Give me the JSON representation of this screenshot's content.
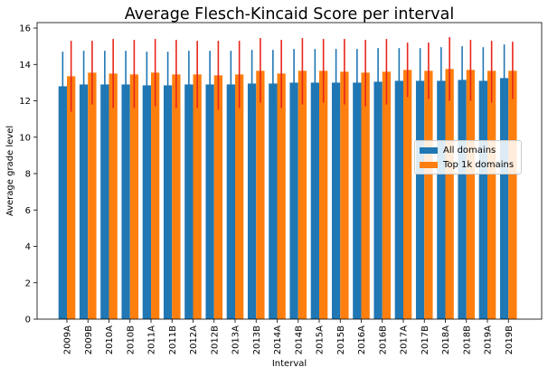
{
  "chart_data": {
    "type": "bar",
    "title": "Average Flesch-Kincaid Score per interval",
    "xlabel": "Interval",
    "ylabel": "Average grade level",
    "ylim": [
      0,
      16.3
    ],
    "yticks": [
      0,
      2,
      4,
      6,
      8,
      10,
      12,
      14,
      16
    ],
    "legend_position": "center-right",
    "grid": false,
    "categories": [
      "2009A",
      "2009B",
      "2010A",
      "2010B",
      "2011A",
      "2011B",
      "2012A",
      "2012B",
      "2013A",
      "2013B",
      "2014A",
      "2014B",
      "2015A",
      "2015B",
      "2016A",
      "2016B",
      "2017A",
      "2017B",
      "2018A",
      "2018B",
      "2019A",
      "2019B"
    ],
    "series": [
      {
        "name": "All domains",
        "color": "#1f77b4",
        "values": [
          12.8,
          12.9,
          12.9,
          12.9,
          12.85,
          12.85,
          12.9,
          12.9,
          12.9,
          12.95,
          12.95,
          13.0,
          13.0,
          13.0,
          13.0,
          13.05,
          13.1,
          13.1,
          13.1,
          13.15,
          13.1,
          13.25
        ],
        "error_low": [
          11.0,
          11.0,
          11.0,
          11.05,
          11.0,
          11.0,
          11.05,
          11.05,
          11.05,
          11.1,
          11.1,
          11.15,
          11.2,
          11.2,
          11.2,
          11.2,
          11.25,
          11.25,
          11.25,
          11.3,
          11.3,
          11.4
        ],
        "error_high": [
          14.7,
          14.75,
          14.75,
          14.75,
          14.7,
          14.7,
          14.75,
          14.75,
          14.75,
          14.8,
          14.8,
          14.85,
          14.85,
          14.85,
          14.85,
          14.9,
          14.9,
          14.9,
          14.95,
          15.0,
          14.95,
          15.1
        ]
      },
      {
        "name": "Top 1k domains",
        "color": "#ff7f0e",
        "error_color": "#e8251c",
        "values": [
          13.35,
          13.55,
          13.5,
          13.45,
          13.55,
          13.45,
          13.45,
          13.4,
          13.45,
          13.65,
          13.5,
          13.65,
          13.65,
          13.6,
          13.55,
          13.6,
          13.7,
          13.65,
          13.75,
          13.7,
          13.65,
          13.65
        ],
        "error_low": [
          11.4,
          11.8,
          11.6,
          11.6,
          11.7,
          11.6,
          11.6,
          11.5,
          11.6,
          11.9,
          11.6,
          11.8,
          11.9,
          11.8,
          11.7,
          11.8,
          12.2,
          12.1,
          12.0,
          12.0,
          11.9,
          12.1
        ],
        "error_high": [
          15.3,
          15.3,
          15.4,
          15.35,
          15.4,
          15.35,
          15.3,
          15.3,
          15.3,
          15.45,
          15.35,
          15.45,
          15.4,
          15.4,
          15.35,
          15.4,
          15.2,
          15.2,
          15.5,
          15.35,
          15.3,
          15.25
        ]
      }
    ]
  }
}
